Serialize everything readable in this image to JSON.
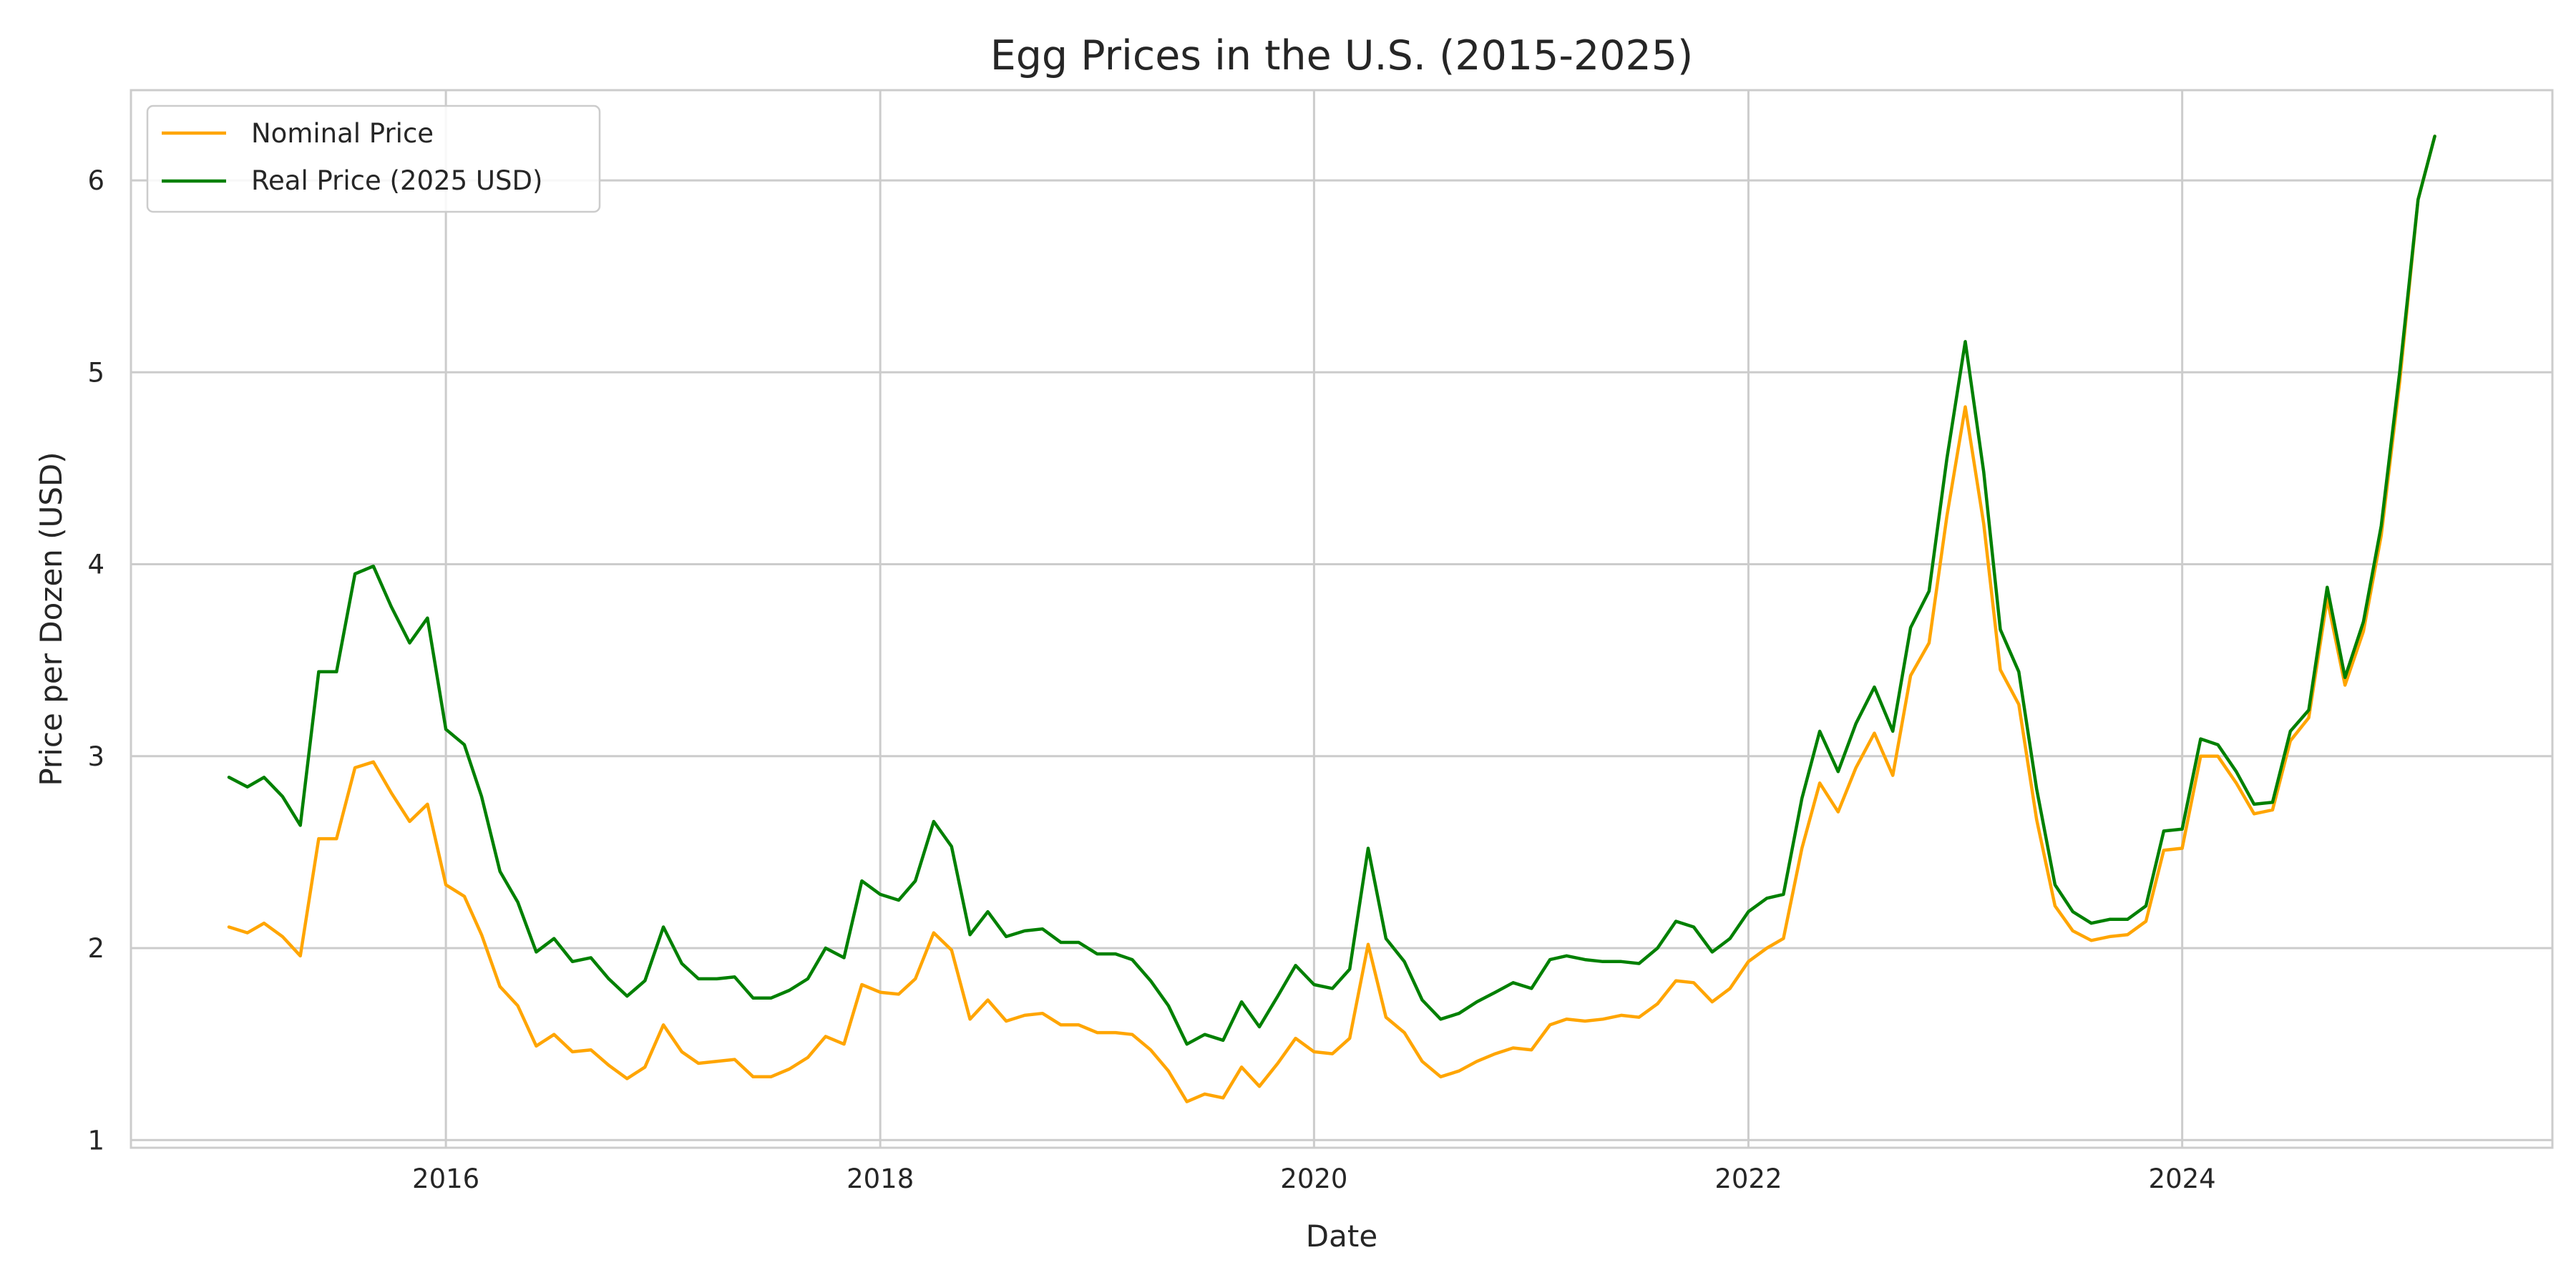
{
  "chart_data": {
    "type": "line",
    "title": "Egg Prices in the U.S. (2015-2025)",
    "xlabel": "Date",
    "ylabel": "Price per Dozen (USD)",
    "x_tick_labels": [
      "2016",
      "2018",
      "2020",
      "2022",
      "2024"
    ],
    "y_tick_labels": [
      "1",
      "2",
      "3",
      "4",
      "5",
      "6"
    ],
    "xlim": [
      "2014-07-20",
      "2025-09-15"
    ],
    "ylim": [
      0.96,
      6.47
    ],
    "grid": true,
    "legend_position": "top-left",
    "x": [
      "2015-01",
      "2015-02",
      "2015-03",
      "2015-04",
      "2015-05",
      "2015-06",
      "2015-07",
      "2015-08",
      "2015-09",
      "2015-10",
      "2015-11",
      "2015-12",
      "2016-01",
      "2016-02",
      "2016-03",
      "2016-04",
      "2016-05",
      "2016-06",
      "2016-07",
      "2016-08",
      "2016-09",
      "2016-10",
      "2016-11",
      "2016-12",
      "2017-01",
      "2017-02",
      "2017-03",
      "2017-04",
      "2017-05",
      "2017-06",
      "2017-07",
      "2017-08",
      "2017-09",
      "2017-10",
      "2017-11",
      "2017-12",
      "2018-01",
      "2018-02",
      "2018-03",
      "2018-04",
      "2018-05",
      "2018-06",
      "2018-07",
      "2018-08",
      "2018-09",
      "2018-10",
      "2018-11",
      "2018-12",
      "2019-01",
      "2019-02",
      "2019-03",
      "2019-04",
      "2019-05",
      "2019-06",
      "2019-07",
      "2019-08",
      "2019-09",
      "2019-10",
      "2019-11",
      "2019-12",
      "2020-01",
      "2020-02",
      "2020-03",
      "2020-04",
      "2020-05",
      "2020-06",
      "2020-07",
      "2020-08",
      "2020-09",
      "2020-10",
      "2020-11",
      "2020-12",
      "2021-01",
      "2021-02",
      "2021-03",
      "2021-04",
      "2021-05",
      "2021-06",
      "2021-07",
      "2021-08",
      "2021-09",
      "2021-10",
      "2021-11",
      "2021-12",
      "2022-01",
      "2022-02",
      "2022-03",
      "2022-04",
      "2022-05",
      "2022-06",
      "2022-07",
      "2022-08",
      "2022-09",
      "2022-10",
      "2022-11",
      "2022-12",
      "2023-01",
      "2023-02",
      "2023-03",
      "2023-04",
      "2023-05",
      "2023-06",
      "2023-07",
      "2023-08",
      "2023-09",
      "2023-10",
      "2023-11",
      "2023-12",
      "2024-01",
      "2024-02",
      "2024-03",
      "2024-04",
      "2024-05",
      "2024-06",
      "2024-07",
      "2024-08",
      "2024-09",
      "2024-10",
      "2024-11",
      "2024-12",
      "2025-01",
      "2025-02",
      "2025-03"
    ],
    "series": [
      {
        "name": "Nominal Price",
        "color": "#ffa500",
        "values": [
          2.11,
          2.08,
          2.13,
          2.06,
          1.96,
          2.57,
          2.57,
          2.94,
          2.97,
          2.81,
          2.66,
          2.75,
          2.33,
          2.27,
          2.07,
          1.8,
          1.7,
          1.49,
          1.55,
          1.46,
          1.47,
          1.39,
          1.32,
          1.38,
          1.6,
          1.46,
          1.4,
          1.41,
          1.42,
          1.33,
          1.33,
          1.37,
          1.43,
          1.54,
          1.5,
          1.81,
          1.77,
          1.76,
          1.84,
          2.08,
          1.99,
          1.63,
          1.73,
          1.62,
          1.65,
          1.66,
          1.6,
          1.6,
          1.56,
          1.56,
          1.55,
          1.47,
          1.36,
          1.2,
          1.24,
          1.22,
          1.38,
          1.28,
          1.4,
          1.53,
          1.46,
          1.45,
          1.53,
          2.02,
          1.64,
          1.56,
          1.41,
          1.33,
          1.36,
          1.41,
          1.45,
          1.48,
          1.47,
          1.6,
          1.63,
          1.62,
          1.63,
          1.65,
          1.64,
          1.71,
          1.83,
          1.82,
          1.72,
          1.79,
          1.93,
          2.0,
          2.05,
          2.52,
          2.86,
          2.71,
          2.94,
          3.12,
          2.9,
          3.42,
          3.59,
          4.25,
          4.82,
          4.21,
          3.45,
          3.27,
          2.67,
          2.22,
          2.09,
          2.04,
          2.06,
          2.07,
          2.14,
          2.51,
          2.52,
          3.0,
          3.0,
          2.86,
          2.7,
          2.72,
          3.08,
          3.2,
          3.82,
          3.37,
          3.65,
          4.15,
          4.95,
          5.9,
          6.23
        ]
      },
      {
        "name": "Real Price (2025 USD)",
        "color": "#008000",
        "values": [
          2.89,
          2.84,
          2.89,
          2.79,
          2.64,
          3.44,
          3.44,
          3.95,
          3.99,
          3.78,
          3.59,
          3.72,
          3.14,
          3.06,
          2.79,
          2.4,
          2.24,
          1.98,
          2.05,
          1.93,
          1.95,
          1.84,
          1.75,
          1.83,
          2.11,
          1.92,
          1.84,
          1.84,
          1.85,
          1.74,
          1.74,
          1.78,
          1.84,
          2.0,
          1.95,
          2.35,
          2.28,
          2.25,
          2.35,
          2.66,
          2.53,
          2.07,
          2.19,
          2.06,
          2.09,
          2.1,
          2.03,
          2.03,
          1.97,
          1.97,
          1.94,
          1.83,
          1.7,
          1.5,
          1.55,
          1.52,
          1.72,
          1.59,
          1.75,
          1.91,
          1.81,
          1.79,
          1.89,
          2.52,
          2.05,
          1.93,
          1.73,
          1.63,
          1.66,
          1.72,
          1.77,
          1.82,
          1.79,
          1.94,
          1.96,
          1.94,
          1.93,
          1.93,
          1.92,
          2.0,
          2.14,
          2.11,
          1.98,
          2.05,
          2.19,
          2.26,
          2.28,
          2.78,
          3.13,
          2.92,
          3.17,
          3.36,
          3.13,
          3.67,
          3.86,
          4.55,
          5.16,
          4.48,
          3.66,
          3.44,
          2.83,
          2.33,
          2.19,
          2.13,
          2.15,
          2.15,
          2.22,
          2.61,
          2.62,
          3.09,
          3.06,
          2.92,
          2.75,
          2.76,
          3.13,
          3.24,
          3.88,
          3.41,
          3.7,
          4.2,
          5.0,
          5.9,
          6.23
        ]
      }
    ]
  }
}
